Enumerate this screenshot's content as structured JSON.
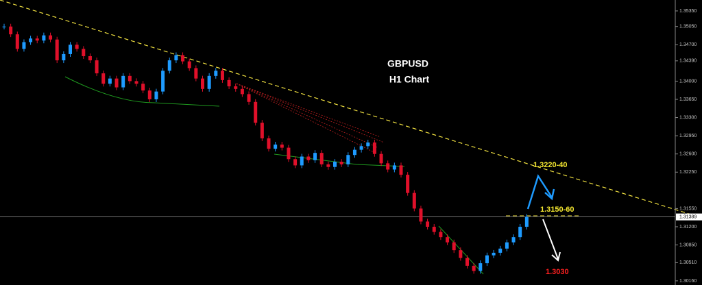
{
  "chart_data": {
    "type": "candlestick",
    "title": "GBPUSD",
    "subtitle": "H1 Chart",
    "annotations": [
      "1.3220-40",
      "1.3150-60",
      "1.3030"
    ],
    "values": [
      1.3505,
      1.349,
      1.3462,
      1.3475,
      1.3482,
      1.3478,
      1.3488,
      1.348,
      1.344,
      1.3452,
      1.347,
      1.3462,
      1.3448,
      1.344,
      1.3415,
      1.3395,
      1.3405,
      1.3388,
      1.341,
      1.34,
      1.3395,
      1.3382,
      1.3365,
      1.338,
      1.342,
      1.344,
      1.345,
      1.3438,
      1.3425,
      1.3405,
      1.3385,
      1.341,
      1.342,
      1.3402,
      1.339,
      1.3385,
      1.3375,
      1.336,
      1.332,
      1.329,
      1.327,
      1.3278,
      1.3272,
      1.325,
      1.3238,
      1.3255,
      1.3248,
      1.3262,
      1.324,
      1.3235,
      1.3245,
      1.324,
      1.3258,
      1.3268,
      1.3275,
      1.3282,
      1.326,
      1.3242,
      1.323,
      1.3238,
      1.322,
      1.3185,
      1.3155,
      1.313,
      1.312,
      1.311,
      1.31,
      1.309,
      1.3075,
      1.306,
      1.3045,
      1.3035,
      1.305,
      1.3065,
      1.307,
      1.3078,
      1.309,
      1.31,
      1.312,
      1.31389
    ],
    "up_color": "#1e9bff",
    "down_color": "#e0102a",
    "current_price": 1.31389,
    "ylim": [
      1.3008,
      1.3556
    ],
    "yticks": [
      {
        "value": 1.3535,
        "label": "1.35350"
      },
      {
        "value": 1.3505,
        "label": "1.35050"
      },
      {
        "value": 1.347,
        "label": "1.34700"
      },
      {
        "value": 1.3439,
        "label": "1.34390"
      },
      {
        "value": 1.34,
        "label": "1.34000"
      },
      {
        "value": 1.3365,
        "label": "1.33650"
      },
      {
        "value": 1.333,
        "label": "1.33300"
      },
      {
        "value": 1.3295,
        "label": "1.32950"
      },
      {
        "value": 1.326,
        "label": "1.32600"
      },
      {
        "value": 1.3225,
        "label": "1.32250"
      },
      {
        "value": 1.3155,
        "label": "1.31550"
      },
      {
        "value": 1.312,
        "label": "1.31200"
      },
      {
        "value": 1.3085,
        "label": "1.30850"
      },
      {
        "value": 1.3051,
        "label": "1.30510"
      },
      {
        "value": 1.3016,
        "label": "1.30160"
      }
    ]
  }
}
